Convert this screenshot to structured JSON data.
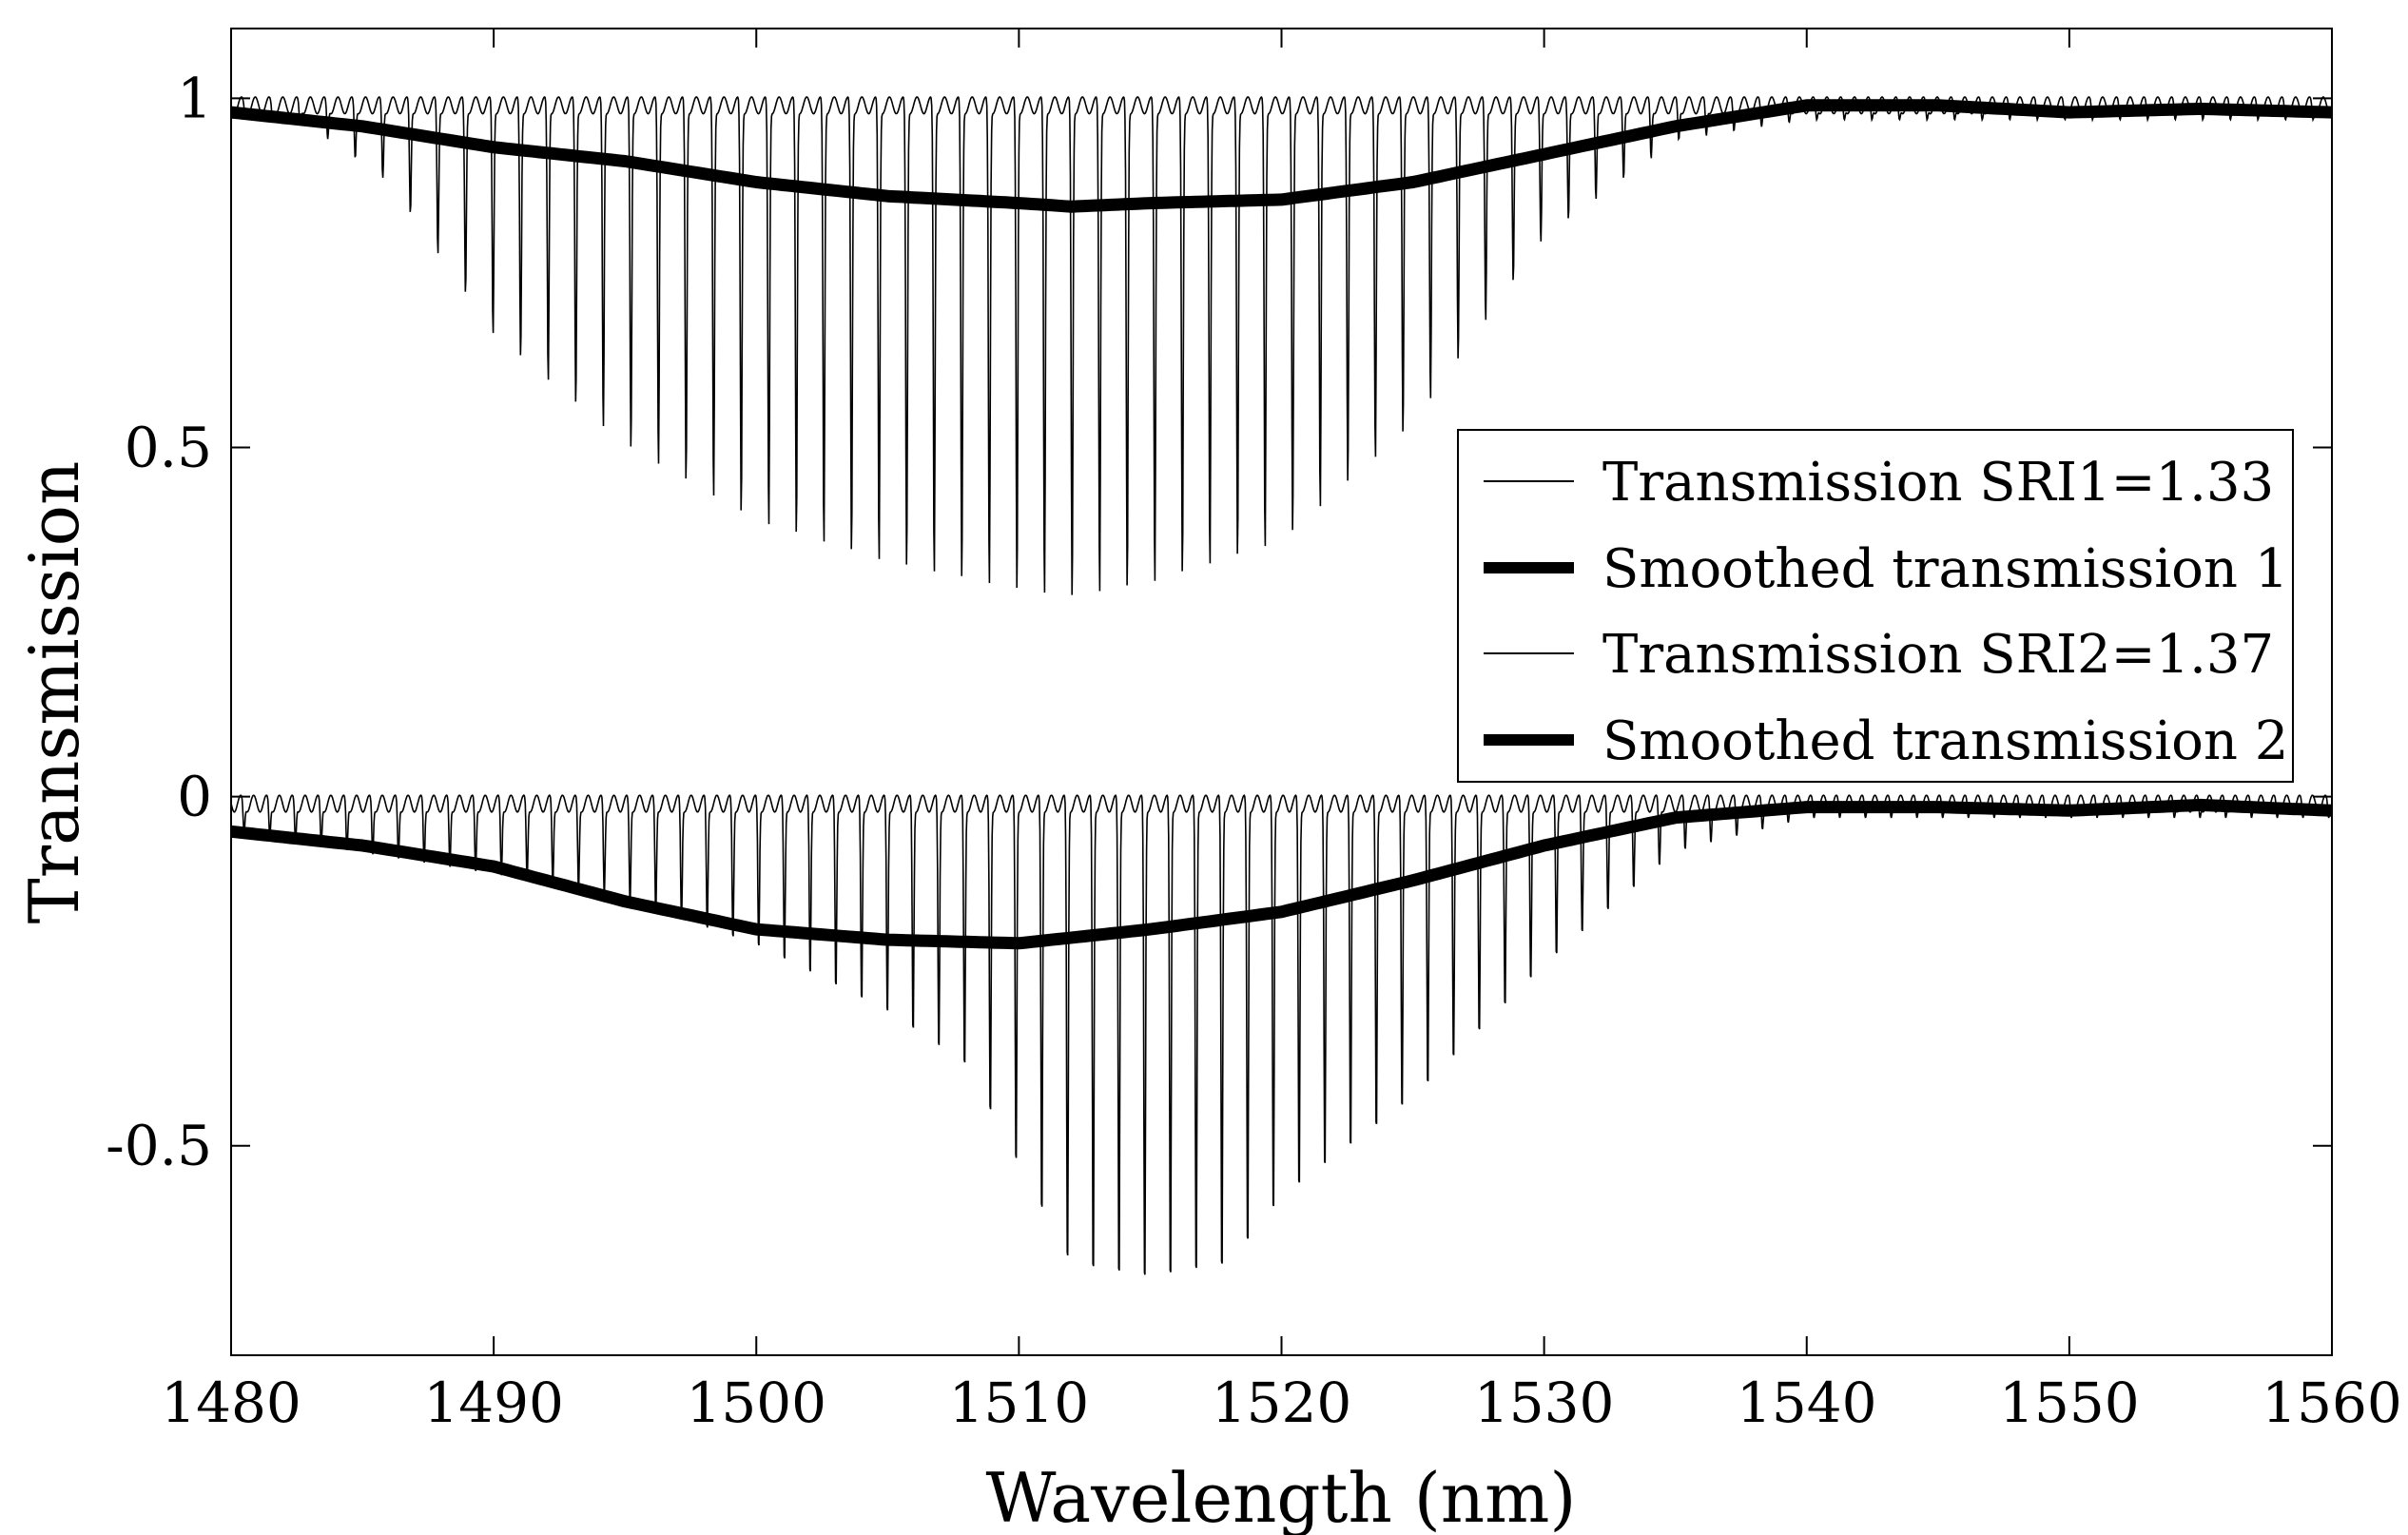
{
  "chart_data": {
    "type": "line",
    "title": "",
    "xlabel": "Wavelength (nm)",
    "ylabel": "Transmission",
    "xlim": [
      1480,
      1560
    ],
    "ylim": [
      -0.8,
      1.1
    ],
    "xticks": [
      1480,
      1490,
      1500,
      1510,
      1520,
      1530,
      1540,
      1550,
      1560
    ],
    "xtick_labels": [
      "1480",
      "1490",
      "1500",
      "1510",
      "1520",
      "1530",
      "1540",
      "1550",
      "1560"
    ],
    "yticks": [
      -0.5,
      0,
      0.5,
      1
    ],
    "ytick_labels": [
      "-0.5",
      "0",
      "0.5",
      "1"
    ],
    "grid": false,
    "legend_position": "center-right",
    "series": [
      {
        "name": "Transmission SRI1=1.33",
        "style": "thin",
        "color": "#000000",
        "baseline": 0.99,
        "comb_period_nm": 1.05,
        "dip_depth_profile": {
          "x": [
            1480,
            1483,
            1486,
            1490,
            1495,
            1500,
            1505,
            1510,
            1512,
            1515,
            1520,
            1525,
            1530,
            1535,
            1540,
            1560
          ],
          "y": [
            0.98,
            0.96,
            0.88,
            0.66,
            0.5,
            0.39,
            0.33,
            0.29,
            0.28,
            0.3,
            0.36,
            0.53,
            0.8,
            0.94,
            0.97,
            0.97
          ]
        }
      },
      {
        "name": "Smoothed transmission 1",
        "style": "thick",
        "color": "#000000",
        "x": [
          1480,
          1485,
          1490,
          1495,
          1500,
          1505,
          1510,
          1512,
          1515,
          1520,
          1525,
          1530,
          1535,
          1540,
          1545,
          1550,
          1555,
          1560
        ],
        "y": [
          0.98,
          0.96,
          0.93,
          0.91,
          0.88,
          0.86,
          0.85,
          0.845,
          0.85,
          0.855,
          0.88,
          0.92,
          0.96,
          0.99,
          0.99,
          0.98,
          0.985,
          0.98
        ]
      },
      {
        "name": "Transmission SRI2=1.37",
        "style": "thin",
        "color": "#000000",
        "baseline": -0.01,
        "comb_period_nm": 0.98,
        "dip_depth_profile": {
          "x": [
            1480,
            1494,
            1500,
            1505,
            1508,
            1510,
            1512,
            1515,
            1518,
            1520,
            1525,
            1530,
            1535,
            1540,
            1560
          ],
          "y": [
            -0.05,
            -0.14,
            -0.22,
            -0.32,
            -0.4,
            -0.55,
            -0.7,
            -0.72,
            -0.7,
            -0.6,
            -0.45,
            -0.25,
            -0.08,
            -0.03,
            -0.03
          ]
        }
      },
      {
        "name": "Smoothed transmission 2",
        "style": "thick",
        "color": "#000000",
        "x": [
          1480,
          1485,
          1490,
          1495,
          1500,
          1505,
          1510,
          1515,
          1520,
          1525,
          1530,
          1535,
          1540,
          1545,
          1550,
          1555,
          1560
        ],
        "y": [
          -0.05,
          -0.07,
          -0.1,
          -0.15,
          -0.19,
          -0.205,
          -0.21,
          -0.19,
          -0.165,
          -0.12,
          -0.07,
          -0.03,
          -0.015,
          -0.015,
          -0.02,
          -0.012,
          -0.02
        ]
      }
    ]
  }
}
